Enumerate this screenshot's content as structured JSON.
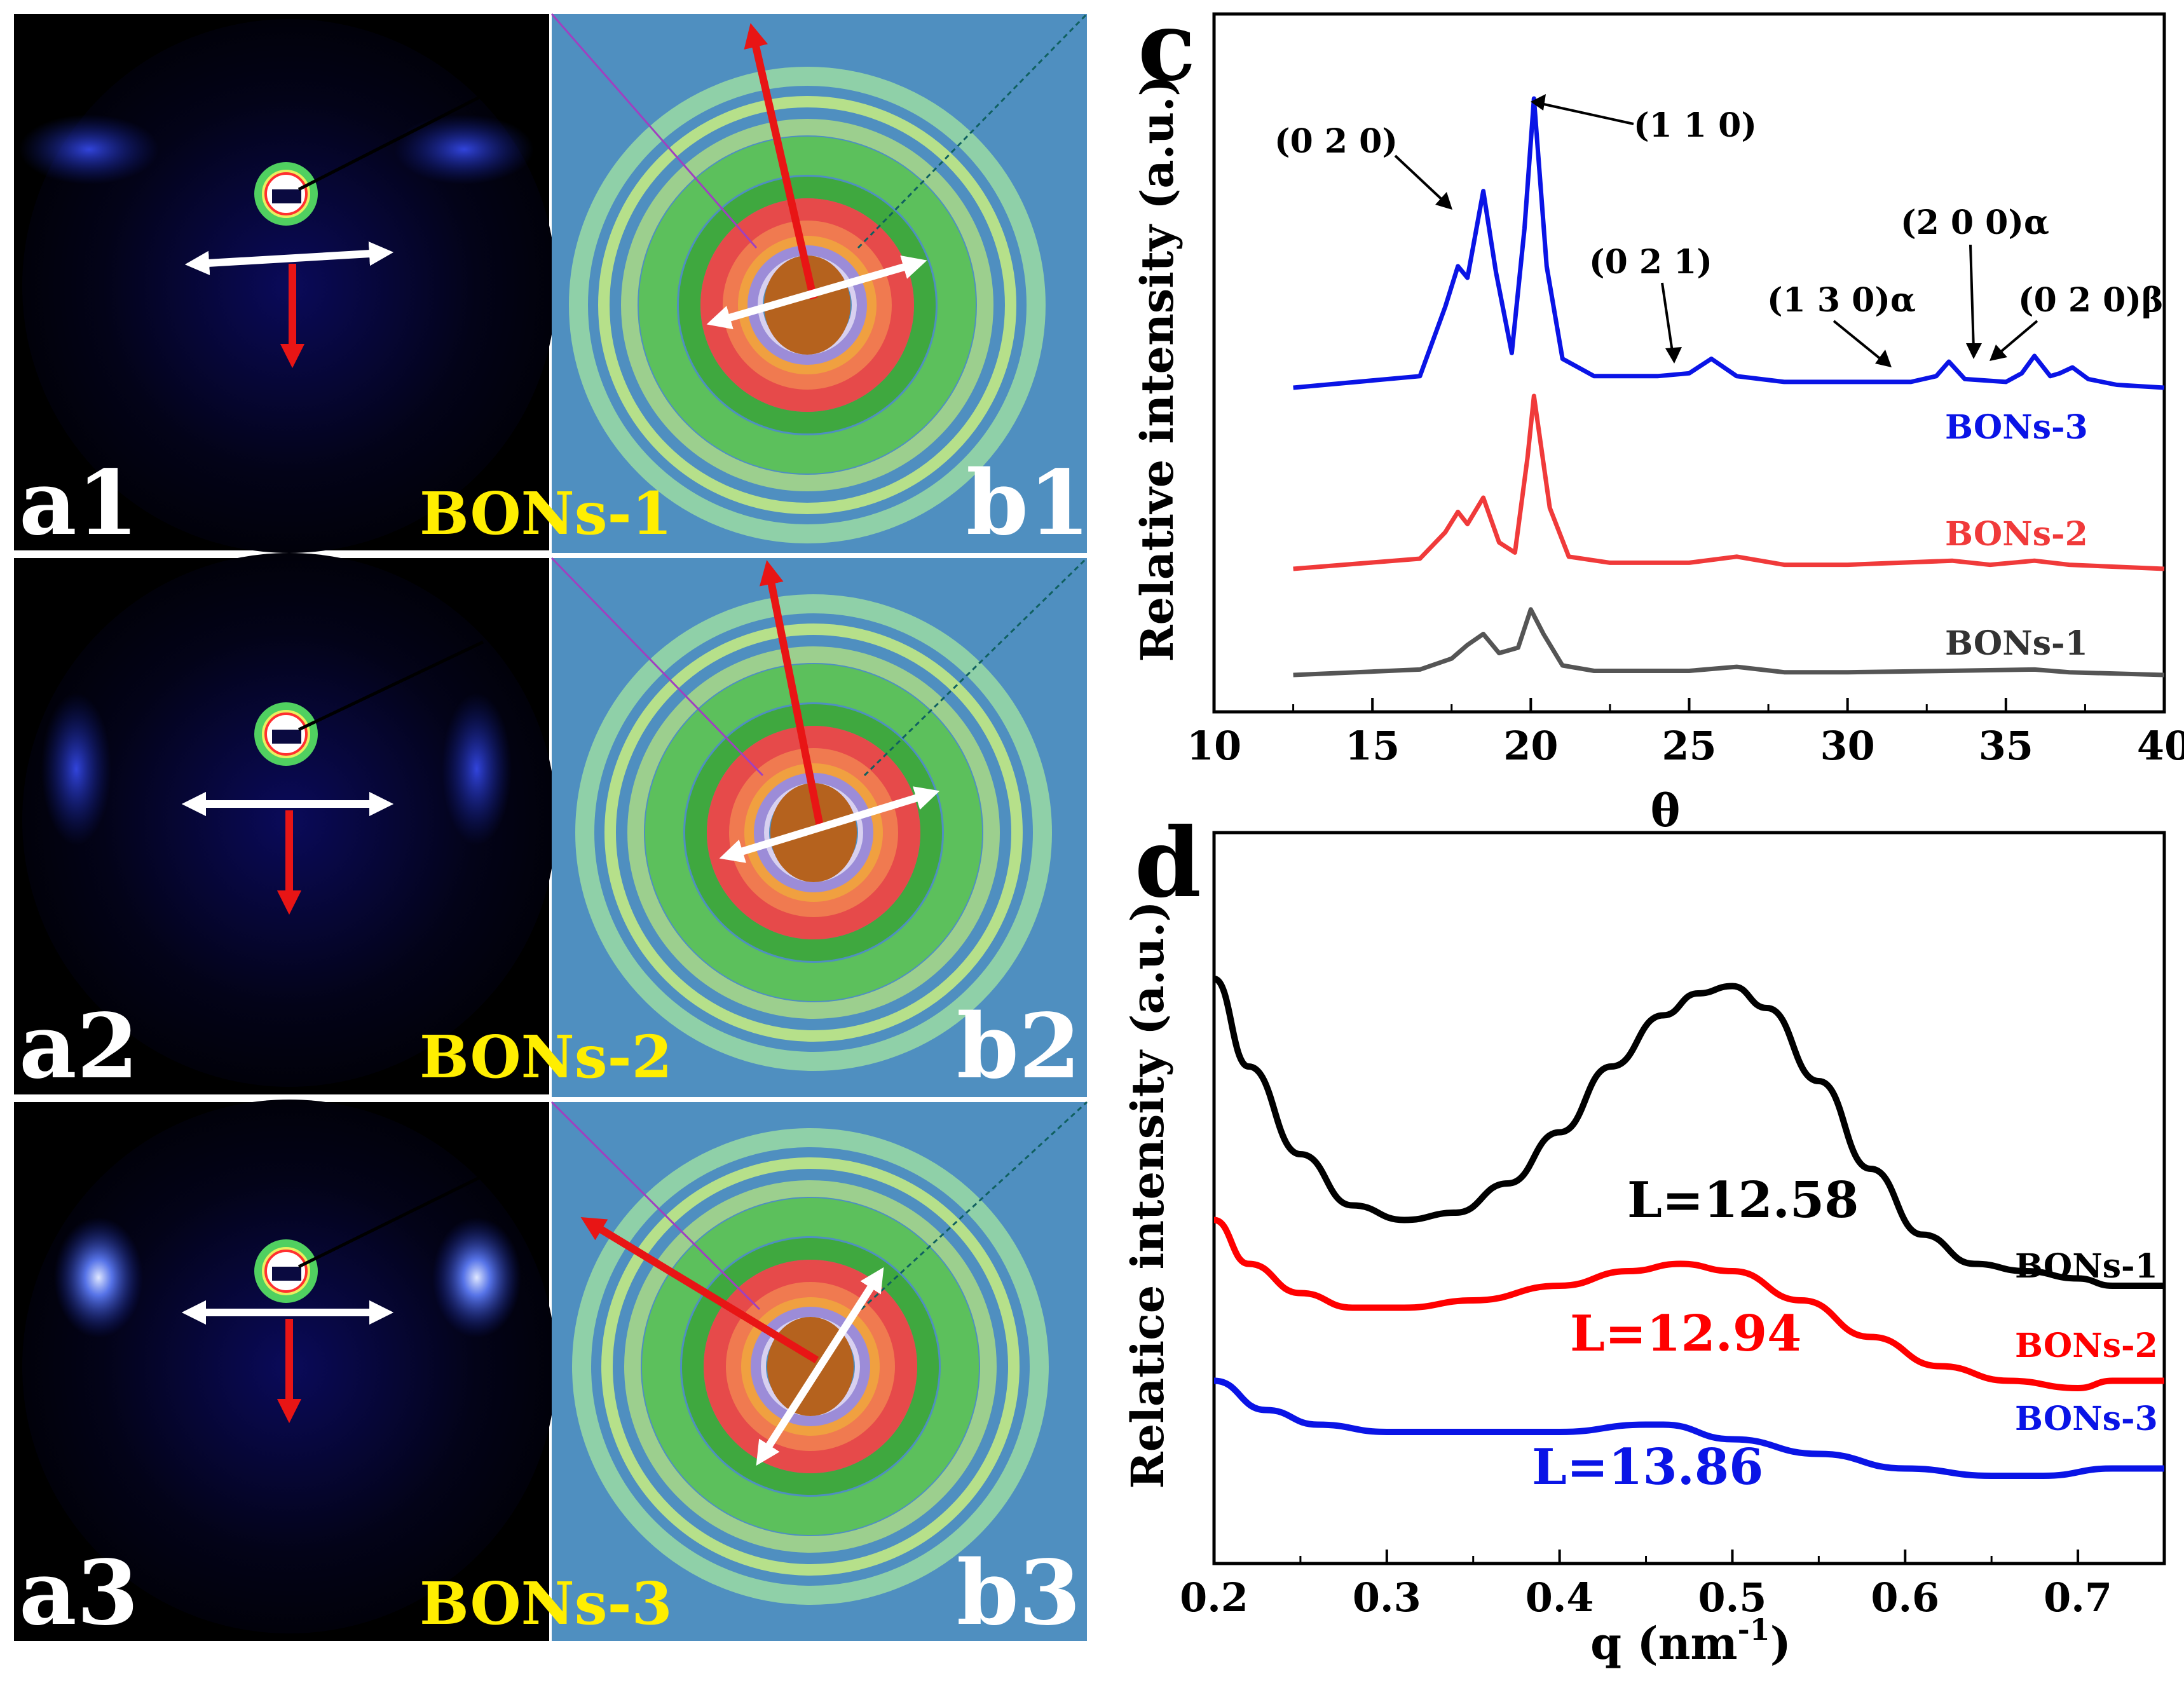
{
  "panels": {
    "saxs": [
      {
        "label": "a1",
        "sample": "BONs-1"
      },
      {
        "label": "a2",
        "sample": "BONs-2"
      },
      {
        "label": "a3",
        "sample": "BONs-3"
      }
    ],
    "waxd": [
      {
        "label": "b1"
      },
      {
        "label": "b2"
      },
      {
        "label": "b3"
      }
    ]
  },
  "colors": {
    "blue": "#0a14e6",
    "red": "#f03a3a",
    "red_strong": "#ff0000",
    "gray": "#555555",
    "black": "#000000",
    "yellow": "#ffee00",
    "arrow_red": "#e81515",
    "arrow_white": "#ffffff"
  },
  "chart_data": [
    {
      "panel": "c",
      "type": "line",
      "ylabel": "Relative intensity (a.u.)",
      "xlabel": "θ",
      "xlim": [
        10,
        40
      ],
      "x_ticks": [
        "10",
        "15",
        "20",
        "25",
        "30",
        "35",
        "40"
      ],
      "series": [
        {
          "name": "BONs-3",
          "color": "#0a14e6",
          "x": [
            12.5,
            16.5,
            17.3,
            17.7,
            18.0,
            18.5,
            18.9,
            19.4,
            19.8,
            20.1,
            20.5,
            21.0,
            22.0,
            24.0,
            25.0,
            25.7,
            26.5,
            28.0,
            30.0,
            32.0,
            32.8,
            33.2,
            33.7,
            35.0,
            35.5,
            35.9,
            36.4,
            36.7,
            37.1,
            37.6,
            38.5,
            40.0
          ],
          "y": [
            0.0,
            0.04,
            0.28,
            0.42,
            0.38,
            0.68,
            0.4,
            0.12,
            0.55,
            1.0,
            0.42,
            0.1,
            0.04,
            0.04,
            0.05,
            0.1,
            0.04,
            0.02,
            0.02,
            0.02,
            0.04,
            0.09,
            0.03,
            0.02,
            0.05,
            0.11,
            0.04,
            0.05,
            0.07,
            0.03,
            0.01,
            0.0
          ]
        },
        {
          "name": "BONs-2",
          "color": "#f03a3a",
          "x": [
            12.5,
            16.5,
            17.3,
            17.7,
            18.0,
            18.5,
            19.0,
            19.5,
            19.9,
            20.1,
            20.6,
            21.2,
            22.5,
            25.0,
            26.5,
            28.0,
            30.0,
            33.3,
            34.5,
            35.9,
            37.0,
            40.0
          ],
          "y": [
            0.0,
            0.05,
            0.18,
            0.28,
            0.22,
            0.35,
            0.13,
            0.08,
            0.55,
            0.85,
            0.3,
            0.06,
            0.03,
            0.03,
            0.06,
            0.02,
            0.02,
            0.04,
            0.02,
            0.04,
            0.02,
            0.0
          ]
        },
        {
          "name": "BONs-1",
          "color": "#555555",
          "x": [
            12.5,
            16.5,
            17.5,
            18.0,
            18.5,
            19.0,
            19.6,
            20.0,
            20.4,
            21.0,
            22.0,
            25.0,
            26.5,
            28.0,
            30.0,
            33.2,
            35.9,
            37.0,
            40.0
          ],
          "y": [
            0.0,
            0.04,
            0.12,
            0.22,
            0.3,
            0.16,
            0.2,
            0.48,
            0.3,
            0.07,
            0.03,
            0.03,
            0.06,
            0.02,
            0.02,
            0.03,
            0.04,
            0.02,
            0.0
          ]
        }
      ],
      "annotations": [
        {
          "text": "(0 2 0)"
        },
        {
          "text": "(1 1 0)"
        },
        {
          "text": "(0 2 1)"
        },
        {
          "text": "(1 3 0)α"
        },
        {
          "text": "(2 0 0)α"
        },
        {
          "text": "(0 2 0)β"
        }
      ]
    },
    {
      "panel": "d",
      "type": "line",
      "ylabel": "Relatice intensity (a.u.)",
      "xlabel": "q (nm",
      "xlabel_sup": "-1",
      "xlabel_end": ")",
      "xlim": [
        0.2,
        0.75
      ],
      "x_ticks": [
        "0.2",
        "0.3",
        "0.4",
        "0.5",
        "0.6",
        "0.7"
      ],
      "series": [
        {
          "name": "BONs-1",
          "color": "#000000",
          "x": [
            0.2,
            0.22,
            0.25,
            0.28,
            0.31,
            0.34,
            0.37,
            0.4,
            0.43,
            0.46,
            0.48,
            0.5,
            0.52,
            0.55,
            0.58,
            0.61,
            0.64,
            0.67,
            0.7,
            0.72,
            0.75
          ],
          "y": [
            0.8,
            0.68,
            0.56,
            0.49,
            0.47,
            0.48,
            0.52,
            0.59,
            0.68,
            0.75,
            0.78,
            0.79,
            0.76,
            0.66,
            0.54,
            0.45,
            0.41,
            0.4,
            0.39,
            0.38,
            0.38
          ]
        },
        {
          "name": "BONs-2",
          "color": "#ff0000",
          "x": [
            0.2,
            0.22,
            0.25,
            0.28,
            0.31,
            0.35,
            0.4,
            0.44,
            0.47,
            0.5,
            0.54,
            0.58,
            0.62,
            0.66,
            0.7,
            0.72,
            0.75
          ],
          "y": [
            0.47,
            0.41,
            0.37,
            0.35,
            0.35,
            0.36,
            0.38,
            0.4,
            0.41,
            0.4,
            0.36,
            0.31,
            0.27,
            0.25,
            0.24,
            0.25,
            0.25
          ]
        },
        {
          "name": "BONs-3",
          "color": "#0a14e6",
          "x": [
            0.2,
            0.23,
            0.26,
            0.3,
            0.35,
            0.4,
            0.45,
            0.46,
            0.5,
            0.55,
            0.6,
            0.65,
            0.68,
            0.72,
            0.75
          ],
          "y": [
            0.25,
            0.21,
            0.19,
            0.18,
            0.18,
            0.18,
            0.19,
            0.19,
            0.17,
            0.15,
            0.13,
            0.12,
            0.12,
            0.13,
            0.13
          ]
        }
      ],
      "annotations": [
        {
          "text": "L=12.58",
          "color": "#000000"
        },
        {
          "text": "L=12.94",
          "color": "#ff0000"
        },
        {
          "text": "L=13.86",
          "color": "#0a14e6"
        }
      ]
    }
  ],
  "panel_letters": {
    "c": "c",
    "d": "d"
  }
}
